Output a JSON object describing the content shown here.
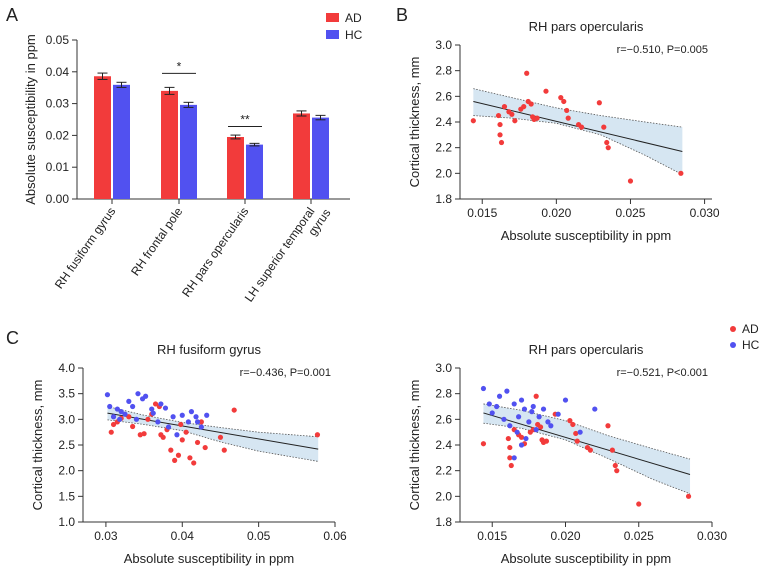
{
  "panels": {
    "a": "A",
    "b": "B",
    "c": "C"
  },
  "colors": {
    "ad": "#f23b3b",
    "hc": "#5151f0",
    "band": "#d6e6f2"
  },
  "chart_data": [
    {
      "id": "A",
      "type": "bar",
      "title": "",
      "ylabel": "Absolute susceptibility in ppm",
      "ylim": [
        0,
        0.05
      ],
      "yticks": [
        "0.00",
        "0.01",
        "0.02",
        "0.03",
        "0.04",
        "0.05"
      ],
      "categories": [
        "RH fusiform gyrus",
        "RH frontal pole",
        "RH pars opercularis",
        "LH superior temporal gyrus"
      ],
      "category_lines": [
        [
          "RH fusiform gyrus"
        ],
        [
          "RH frontal pole"
        ],
        [
          "RH pars opercularis"
        ],
        [
          "LH superior temporal",
          "gyrus"
        ]
      ],
      "series": [
        {
          "name": "AD",
          "color": "#f23b3b",
          "values": [
            0.0386,
            0.034,
            0.0195,
            0.0269
          ],
          "errors": [
            0.001,
            0.0011,
            0.0006,
            0.0008
          ]
        },
        {
          "name": "HC",
          "color": "#5151f0",
          "values": [
            0.0359,
            0.0296,
            0.0171,
            0.0256
          ],
          "errors": [
            0.0008,
            0.0008,
            0.0004,
            0.0007
          ]
        }
      ],
      "significance": [
        {
          "category_index": 1,
          "label": "*",
          "y": 0.0395
        },
        {
          "category_index": 2,
          "label": "**",
          "y": 0.0228
        }
      ],
      "legend": [
        "AD",
        "HC"
      ]
    },
    {
      "id": "B",
      "type": "scatter",
      "title": "RH pars opercularis",
      "xlabel": "Absolute susceptibility in ppm",
      "ylabel": "Cortical thickness, mm",
      "xlim": [
        0.0135,
        0.0305
      ],
      "ylim": [
        1.8,
        3.0
      ],
      "xticks": [
        0.015,
        0.02,
        0.025,
        0.03
      ],
      "xtick_labels": [
        "0.015",
        "0.020",
        "0.025",
        "0.030"
      ],
      "yticks": [
        1.8,
        2.0,
        2.2,
        2.4,
        2.6,
        2.8,
        3.0
      ],
      "ytick_labels": [
        "1.8",
        "2.0",
        "2.2",
        "2.4",
        "2.6",
        "2.8",
        "3.0"
      ],
      "stats": "r=−0.510, P=0.005",
      "fit": {
        "x": [
          0.0144,
          0.0285
        ],
        "y": [
          2.56,
          2.17
        ]
      },
      "band_upper": [
        [
          0.0144,
          2.66
        ],
        [
          0.017,
          2.59
        ],
        [
          0.02,
          2.51
        ],
        [
          0.023,
          2.45
        ],
        [
          0.026,
          2.4
        ],
        [
          0.0285,
          2.36
        ]
      ],
      "band_lower": [
        [
          0.0144,
          2.45
        ],
        [
          0.017,
          2.43
        ],
        [
          0.02,
          2.39
        ],
        [
          0.023,
          2.3
        ],
        [
          0.026,
          2.14
        ],
        [
          0.0285,
          1.99
        ]
      ],
      "series": [
        {
          "name": "AD",
          "color": "#f23b3b",
          "points": [
            [
              0.0144,
              2.41
            ],
            [
              0.0161,
              2.45
            ],
            [
              0.0162,
              2.38
            ],
            [
              0.0162,
              2.3
            ],
            [
              0.0163,
              2.24
            ],
            [
              0.0165,
              2.52
            ],
            [
              0.0168,
              2.48
            ],
            [
              0.017,
              2.46
            ],
            [
              0.0172,
              2.41
            ],
            [
              0.0176,
              2.5
            ],
            [
              0.0178,
              2.52
            ],
            [
              0.018,
              2.78
            ],
            [
              0.0181,
              2.56
            ],
            [
              0.0183,
              2.54
            ],
            [
              0.0184,
              2.44
            ],
            [
              0.0185,
              2.42
            ],
            [
              0.0187,
              2.43
            ],
            [
              0.0193,
              2.64
            ],
            [
              0.0203,
              2.59
            ],
            [
              0.0205,
              2.56
            ],
            [
              0.0207,
              2.49
            ],
            [
              0.0208,
              2.43
            ],
            [
              0.0215,
              2.38
            ],
            [
              0.0217,
              2.36
            ],
            [
              0.0229,
              2.55
            ],
            [
              0.0232,
              2.36
            ],
            [
              0.0234,
              2.24
            ],
            [
              0.0235,
              2.2
            ],
            [
              0.025,
              1.94
            ],
            [
              0.0284,
              2.0
            ]
          ]
        }
      ]
    },
    {
      "id": "C1",
      "type": "scatter",
      "title": "RH fusiform gyrus",
      "xlabel": "Absolute susceptibility in ppm",
      "ylabel": "Cortical thickness, mm",
      "xlim": [
        0.027,
        0.06
      ],
      "ylim": [
        1.0,
        4.0
      ],
      "xticks": [
        0.03,
        0.04,
        0.05,
        0.06
      ],
      "xtick_labels": [
        "0.03",
        "0.04",
        "0.05",
        "0.06"
      ],
      "yticks": [
        1.0,
        1.5,
        2.0,
        2.5,
        3.0,
        3.5,
        4.0
      ],
      "ytick_labels": [
        "1.0",
        "1.5",
        "2.0",
        "2.5",
        "3.0",
        "3.5",
        "4.0"
      ],
      "stats": "r=−0.436, P=0.001",
      "fit": {
        "x": [
          0.0302,
          0.0578
        ],
        "y": [
          3.12,
          2.42
        ]
      },
      "band_upper": [
        [
          0.0302,
          3.25
        ],
        [
          0.035,
          3.08
        ],
        [
          0.04,
          2.94
        ],
        [
          0.045,
          2.84
        ],
        [
          0.05,
          2.75
        ],
        [
          0.0578,
          2.66
        ]
      ],
      "band_lower": [
        [
          0.0302,
          2.99
        ],
        [
          0.035,
          2.9
        ],
        [
          0.04,
          2.78
        ],
        [
          0.045,
          2.56
        ],
        [
          0.05,
          2.38
        ],
        [
          0.0578,
          2.18
        ]
      ],
      "series": [
        {
          "name": "AD",
          "color": "#f23b3b",
          "points": [
            [
              0.0307,
              2.75
            ],
            [
              0.031,
              2.9
            ],
            [
              0.0315,
              2.95
            ],
            [
              0.032,
              3.02
            ],
            [
              0.033,
              3.05
            ],
            [
              0.0335,
              2.86
            ],
            [
              0.0345,
              2.7
            ],
            [
              0.035,
              2.72
            ],
            [
              0.0355,
              3.0
            ],
            [
              0.036,
              3.1
            ],
            [
              0.0365,
              3.3
            ],
            [
              0.037,
              3.25
            ],
            [
              0.0372,
              2.7
            ],
            [
              0.0375,
              2.65
            ],
            [
              0.038,
              2.8
            ],
            [
              0.0385,
              2.4
            ],
            [
              0.039,
              2.2
            ],
            [
              0.0395,
              2.3
            ],
            [
              0.0398,
              2.9
            ],
            [
              0.04,
              2.6
            ],
            [
              0.0405,
              2.75
            ],
            [
              0.041,
              2.25
            ],
            [
              0.0415,
              2.15
            ],
            [
              0.042,
              2.55
            ],
            [
              0.0425,
              2.95
            ],
            [
              0.043,
              2.45
            ],
            [
              0.045,
              2.65
            ],
            [
              0.0455,
              2.4
            ],
            [
              0.0468,
              3.18
            ],
            [
              0.0577,
              2.7
            ]
          ]
        },
        {
          "name": "HC",
          "color": "#5151f0",
          "points": [
            [
              0.0302,
              3.48
            ],
            [
              0.0305,
              3.25
            ],
            [
              0.031,
              3.05
            ],
            [
              0.0315,
              3.2
            ],
            [
              0.0318,
              3.0
            ],
            [
              0.032,
              3.15
            ],
            [
              0.0325,
              3.1
            ],
            [
              0.033,
              3.35
            ],
            [
              0.0335,
              3.25
            ],
            [
              0.034,
              3.0
            ],
            [
              0.0342,
              3.5
            ],
            [
              0.0348,
              3.4
            ],
            [
              0.0352,
              3.45
            ],
            [
              0.036,
              3.2
            ],
            [
              0.0362,
              3.12
            ],
            [
              0.0368,
              2.95
            ],
            [
              0.0372,
              3.3
            ],
            [
              0.0378,
              3.22
            ],
            [
              0.0382,
              2.85
            ],
            [
              0.0388,
              3.05
            ],
            [
              0.0393,
              2.7
            ],
            [
              0.04,
              3.08
            ],
            [
              0.0408,
              2.95
            ],
            [
              0.0412,
              3.15
            ],
            [
              0.0418,
              3.05
            ],
            [
              0.042,
              2.95
            ],
            [
              0.0425,
              2.85
            ],
            [
              0.0432,
              3.08
            ]
          ]
        }
      ]
    },
    {
      "id": "C2",
      "type": "scatter",
      "title": "RH pars opercularis",
      "xlabel": "Absolute susceptibility in ppm",
      "ylabel": "Cortical thickness, mm",
      "xlim": [
        0.0128,
        0.03
      ],
      "ylim": [
        1.8,
        3.0
      ],
      "xticks": [
        0.015,
        0.02,
        0.025,
        0.03
      ],
      "xtick_labels": [
        "0.015",
        "0.020",
        "0.025",
        "0.030"
      ],
      "yticks": [
        1.8,
        2.0,
        2.2,
        2.4,
        2.6,
        2.8,
        3.0
      ],
      "ytick_labels": [
        "1.8",
        "2.0",
        "2.2",
        "2.4",
        "2.6",
        "2.8",
        "3.0"
      ],
      "stats": "r=−0.521, P<0.001",
      "legend": [
        "AD",
        "HC"
      ],
      "fit": {
        "x": [
          0.0144,
          0.0285
        ],
        "y": [
          2.65,
          2.17
        ]
      },
      "band_upper": [
        [
          0.0144,
          2.72
        ],
        [
          0.017,
          2.67
        ],
        [
          0.02,
          2.59
        ],
        [
          0.023,
          2.47
        ],
        [
          0.026,
          2.37
        ],
        [
          0.0285,
          2.29
        ]
      ],
      "band_lower": [
        [
          0.0144,
          2.57
        ],
        [
          0.017,
          2.53
        ],
        [
          0.02,
          2.44
        ],
        [
          0.023,
          2.29
        ],
        [
          0.026,
          2.13
        ],
        [
          0.0285,
          2.02
        ]
      ],
      "series": [
        {
          "name": "AD",
          "color": "#f23b3b",
          "points": [
            [
              0.0144,
              2.41
            ],
            [
              0.0161,
              2.45
            ],
            [
              0.0162,
              2.38
            ],
            [
              0.0162,
              2.3
            ],
            [
              0.0163,
              2.24
            ],
            [
              0.0165,
              2.52
            ],
            [
              0.0168,
              2.48
            ],
            [
              0.017,
              2.46
            ],
            [
              0.0172,
              2.41
            ],
            [
              0.0176,
              2.5
            ],
            [
              0.0178,
              2.52
            ],
            [
              0.018,
              2.78
            ],
            [
              0.0181,
              2.56
            ],
            [
              0.0183,
              2.54
            ],
            [
              0.0184,
              2.44
            ],
            [
              0.0185,
              2.42
            ],
            [
              0.0187,
              2.43
            ],
            [
              0.0193,
              2.64
            ],
            [
              0.0203,
              2.59
            ],
            [
              0.0205,
              2.56
            ],
            [
              0.0207,
              2.49
            ],
            [
              0.0208,
              2.43
            ],
            [
              0.0215,
              2.38
            ],
            [
              0.0217,
              2.36
            ],
            [
              0.0229,
              2.55
            ],
            [
              0.0232,
              2.36
            ],
            [
              0.0234,
              2.24
            ],
            [
              0.0235,
              2.2
            ],
            [
              0.025,
              1.94
            ],
            [
              0.0284,
              2.0
            ]
          ]
        },
        {
          "name": "HC",
          "color": "#5151f0",
          "points": [
            [
              0.0144,
              2.84
            ],
            [
              0.0148,
              2.72
            ],
            [
              0.015,
              2.65
            ],
            [
              0.0153,
              2.7
            ],
            [
              0.0155,
              2.78
            ],
            [
              0.0158,
              2.6
            ],
            [
              0.016,
              2.82
            ],
            [
              0.0162,
              2.55
            ],
            [
              0.0165,
              2.72
            ],
            [
              0.0167,
              2.5
            ],
            [
              0.0168,
              2.62
            ],
            [
              0.017,
              2.75
            ],
            [
              0.0172,
              2.68
            ],
            [
              0.0173,
              2.45
            ],
            [
              0.0175,
              2.58
            ],
            [
              0.0177,
              2.66
            ],
            [
              0.0178,
              2.7
            ],
            [
              0.018,
              2.52
            ],
            [
              0.0182,
              2.62
            ],
            [
              0.0185,
              2.68
            ],
            [
              0.0188,
              2.58
            ],
            [
              0.019,
              2.55
            ],
            [
              0.0195,
              2.64
            ],
            [
              0.02,
              2.75
            ],
            [
              0.021,
              2.5
            ],
            [
              0.022,
              2.68
            ],
            [
              0.0165,
              2.3
            ],
            [
              0.017,
              2.4
            ]
          ]
        }
      ]
    }
  ]
}
